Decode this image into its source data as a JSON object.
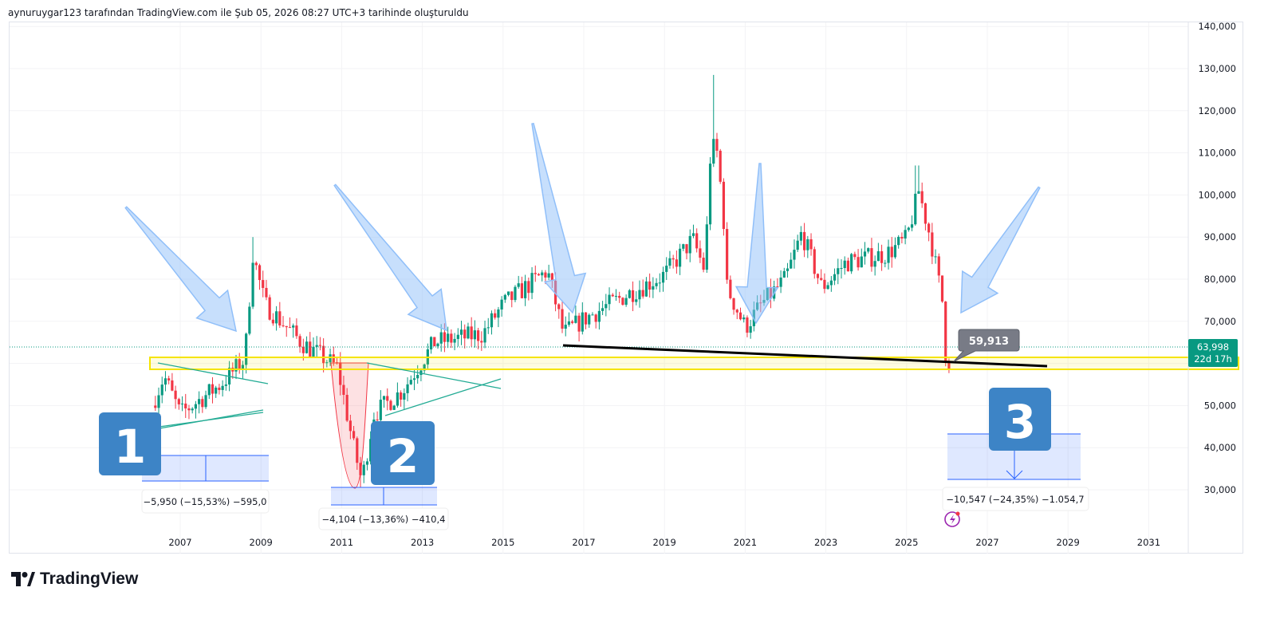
{
  "header": {
    "caption": "aynuruygar123 tarafından TradingView.com ile Şub 05, 2026 08:27 UTC+3 tarihinde oluşturuldu"
  },
  "footer": {
    "brand": "TradingView"
  },
  "colors": {
    "up": "#089981",
    "down": "#f23645",
    "band": "#f5e400",
    "arrow": "#90bff9",
    "badge": "#3d84c6",
    "measure": "#2962ff",
    "last_price": "#089981"
  },
  "chart_data": {
    "type": "candlestick",
    "interval": "monthly",
    "y_ticks": [
      "140,000",
      "130,000",
      "120,000",
      "110,000",
      "100,000",
      "90,000",
      "80,000",
      "70,000",
      "50,000",
      "40,000",
      "30,000"
    ],
    "y_tick_values": [
      140000,
      130000,
      120000,
      110000,
      100000,
      90000,
      80000,
      70000,
      50000,
      40000,
      30000
    ],
    "ylim": [
      30000,
      140000
    ],
    "x_ticks": [
      "2007",
      "2009",
      "2011",
      "2013",
      "2015",
      "2017",
      "2019",
      "2021",
      "2023",
      "2025",
      "2027",
      "2029",
      "2031"
    ],
    "x_tick_values": [
      2007,
      2009,
      2011,
      2013,
      2015,
      2017,
      2019,
      2021,
      2023,
      2025,
      2027,
      2029,
      2031
    ],
    "price_path": [
      [
        2006.3,
        50000
      ],
      [
        2006.6,
        57000
      ],
      [
        2007.0,
        48000
      ],
      [
        2008.0,
        55000
      ],
      [
        2008.6,
        61000
      ],
      [
        2008.8,
        86000
      ],
      [
        2009.1,
        74000
      ],
      [
        2010.0,
        65000
      ],
      [
        2010.9,
        59000
      ],
      [
        2011.3,
        40000
      ],
      [
        2011.5,
        32000
      ],
      [
        2011.8,
        48000
      ],
      [
        2012.5,
        53500
      ],
      [
        2013.3,
        65000
      ],
      [
        2014.5,
        67000
      ],
      [
        2015.0,
        74000
      ],
      [
        2016.1,
        82000
      ],
      [
        2016.5,
        67000
      ],
      [
        2017.0,
        70500
      ],
      [
        2018.0,
        76000
      ],
      [
        2019.0,
        81000
      ],
      [
        2019.7,
        89500
      ],
      [
        2020.0,
        82000
      ],
      [
        2020.15,
        112000
      ],
      [
        2020.3,
        110000
      ],
      [
        2020.45,
        97000
      ],
      [
        2020.55,
        78000
      ],
      [
        2021.0,
        68500
      ],
      [
        2021.4,
        74000
      ],
      [
        2022.0,
        80000
      ],
      [
        2022.4,
        91000
      ],
      [
        2022.9,
        78000
      ],
      [
        2023.5,
        84000
      ],
      [
        2024.5,
        86000
      ],
      [
        2025.0,
        89500
      ],
      [
        2025.3,
        101000
      ],
      [
        2025.6,
        89500
      ],
      [
        2025.9,
        74000
      ],
      [
        2026.0,
        57000
      ],
      [
        2026.1,
        63998
      ]
    ],
    "spikes": [
      [
        2008.8,
        90000
      ],
      [
        2020.2,
        128500
      ],
      [
        2025.25,
        107000
      ],
      [
        2011.45,
        30500
      ]
    ],
    "last_price": "63,998",
    "countdown": "22d 17h",
    "price_note": "59,913",
    "support_band": [
      59000,
      61800
    ],
    "measurements": [
      {
        "label": "−5,950 (−15,53%) −595,0",
        "badge": "1"
      },
      {
        "label": "−4,104 (−13,36%) −410,4",
        "badge": "2"
      },
      {
        "label": "−10,547 (−24,35%) −1.054,7",
        "badge": "3"
      }
    ]
  }
}
